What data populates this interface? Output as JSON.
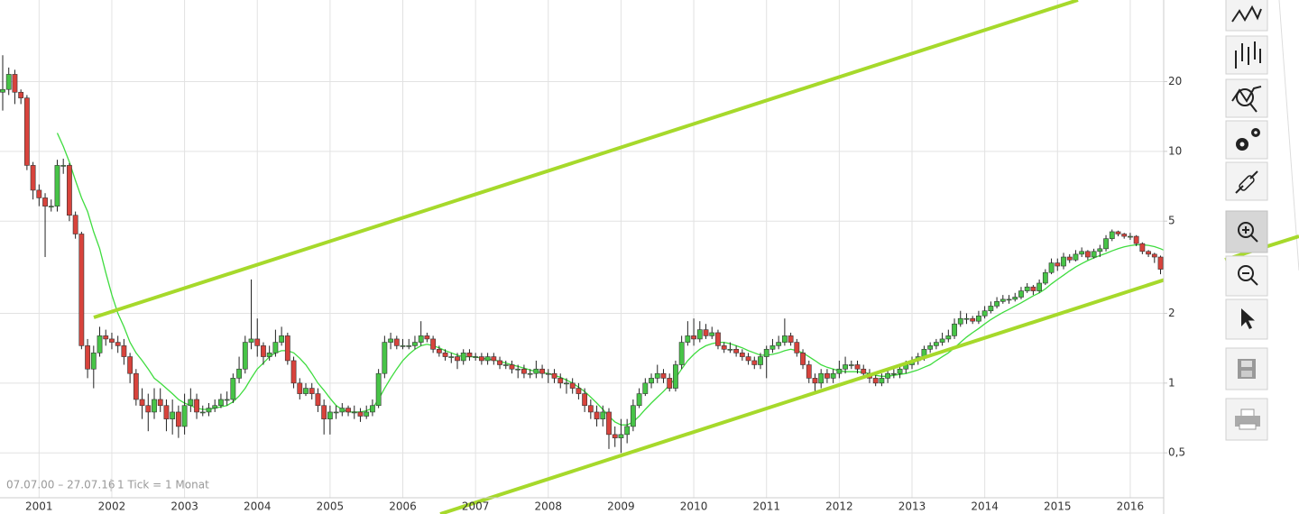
{
  "chart_data": {
    "type": "candlestick",
    "log_scale": true,
    "grid": true,
    "ylim": [
      0.32,
      45
    ],
    "yticks": [
      20,
      10,
      5,
      2,
      1,
      {
        "value": 0.5,
        "label": "0,5"
      }
    ],
    "annotations": [
      "07.07.00 – 27.07.16",
      "1 Tick = 1 Monat"
    ],
    "categories": [
      null,
      null,
      null,
      null,
      null,
      null,
      "2001",
      null,
      null,
      null,
      null,
      null,
      null,
      null,
      null,
      null,
      null,
      null,
      "2002",
      null,
      null,
      null,
      null,
      null,
      null,
      null,
      null,
      null,
      null,
      null,
      "2003",
      null,
      null,
      null,
      null,
      null,
      null,
      null,
      null,
      null,
      null,
      null,
      "2004",
      null,
      null,
      null,
      null,
      null,
      null,
      null,
      null,
      null,
      null,
      null,
      "2005",
      null,
      null,
      null,
      null,
      null,
      null,
      null,
      null,
      null,
      null,
      null,
      "2006",
      null,
      null,
      null,
      null,
      null,
      null,
      null,
      null,
      null,
      null,
      null,
      "2007",
      null,
      null,
      null,
      null,
      null,
      null,
      null,
      null,
      null,
      null,
      null,
      "2008",
      null,
      null,
      null,
      null,
      null,
      null,
      null,
      null,
      null,
      null,
      null,
      "2009",
      null,
      null,
      null,
      null,
      null,
      null,
      null,
      null,
      null,
      null,
      null,
      "2010",
      null,
      null,
      null,
      null,
      null,
      null,
      null,
      null,
      null,
      null,
      null,
      "2011",
      null,
      null,
      null,
      null,
      null,
      null,
      null,
      null,
      null,
      null,
      null,
      "2012",
      null,
      null,
      null,
      null,
      null,
      null,
      null,
      null,
      null,
      null,
      null,
      "2013",
      null,
      null,
      null,
      null,
      null,
      null,
      null,
      null,
      null,
      null,
      null,
      "2014",
      null,
      null,
      null,
      null,
      null,
      null,
      null,
      null,
      null,
      null,
      null,
      "2015",
      null,
      null,
      null,
      null,
      null,
      null,
      null,
      null,
      null,
      null,
      null,
      "2016",
      null,
      null,
      null,
      null,
      null,
      null
    ],
    "candles": {
      "up_color": "#47c447",
      "down_color": "#d8433c",
      "open": [
        18,
        18.5,
        21.5,
        18,
        17,
        8.7,
        6.8,
        6.3,
        5.8,
        5.8,
        8.7,
        8.7,
        5.3,
        4.4,
        1.45,
        1.15,
        1.35,
        1.6,
        1.55,
        1.5,
        1.45,
        1.3,
        1.1,
        0.85,
        0.8,
        0.75,
        0.85,
        0.8,
        0.7,
        0.75,
        0.65,
        0.8,
        0.85,
        0.75,
        0.75,
        0.78,
        0.8,
        0.85,
        0.85,
        1.05,
        1.15,
        1.5,
        1.55,
        1.45,
        1.3,
        1.35,
        1.5,
        1.6,
        1.25,
        1.0,
        0.9,
        0.95,
        0.9,
        0.8,
        0.7,
        0.75,
        0.75,
        0.78,
        0.75,
        0.75,
        0.72,
        0.75,
        0.8,
        1.1,
        1.5,
        1.55,
        1.45,
        1.45,
        1.45,
        1.5,
        1.6,
        1.55,
        1.4,
        1.35,
        1.3,
        1.3,
        1.25,
        1.35,
        1.3,
        1.3,
        1.25,
        1.3,
        1.25,
        1.2,
        1.2,
        1.15,
        1.15,
        1.1,
        1.1,
        1.15,
        1.1,
        1.1,
        1.05,
        1.0,
        1.0,
        0.95,
        0.9,
        0.8,
        0.75,
        0.7,
        0.75,
        0.6,
        0.58,
        0.6,
        0.65,
        0.8,
        0.9,
        1.0,
        1.05,
        1.1,
        1.05,
        0.95,
        1.2,
        1.5,
        1.6,
        1.55,
        1.7,
        1.6,
        1.65,
        1.45,
        1.4,
        1.4,
        1.35,
        1.3,
        1.25,
        1.2,
        1.3,
        1.4,
        1.45,
        1.5,
        1.6,
        1.5,
        1.35,
        1.2,
        1.05,
        1.0,
        1.1,
        1.05,
        1.1,
        1.15,
        1.2,
        1.2,
        1.15,
        1.1,
        1.05,
        1.0,
        1.05,
        1.1,
        1.1,
        1.15,
        1.2,
        1.25,
        1.3,
        1.4,
        1.45,
        1.5,
        1.55,
        1.6,
        1.8,
        1.9,
        1.9,
        1.85,
        1.95,
        2.05,
        2.15,
        2.25,
        2.3,
        2.3,
        2.35,
        2.5,
        2.6,
        2.5,
        2.7,
        3.0,
        3.3,
        3.2,
        3.5,
        3.4,
        3.6,
        3.7,
        3.5,
        3.7,
        3.8,
        4.2,
        4.5,
        4.4,
        4.3,
        4.3,
        4.0,
        3.7,
        3.6,
        3.5,
        3.1
      ],
      "high": [
        26,
        23,
        22.5,
        18.5,
        17.5,
        9,
        7.2,
        6.6,
        6.2,
        9.2,
        9.3,
        8.9,
        5.5,
        4.5,
        1.55,
        1.45,
        1.75,
        1.7,
        1.65,
        1.6,
        1.55,
        1.35,
        1.15,
        0.95,
        0.9,
        0.95,
        0.95,
        0.85,
        0.85,
        0.8,
        0.9,
        0.95,
        0.9,
        0.8,
        0.82,
        0.85,
        0.9,
        0.92,
        1.1,
        1.3,
        1.6,
        2.8,
        1.9,
        1.5,
        1.45,
        1.7,
        1.75,
        1.65,
        1.3,
        1.05,
        1.0,
        1.0,
        0.95,
        0.85,
        0.8,
        0.8,
        0.82,
        0.8,
        0.8,
        0.78,
        0.8,
        0.85,
        1.15,
        1.6,
        1.65,
        1.6,
        1.55,
        1.55,
        1.6,
        1.85,
        1.65,
        1.6,
        1.45,
        1.4,
        1.35,
        1.35,
        1.4,
        1.4,
        1.35,
        1.35,
        1.35,
        1.35,
        1.3,
        1.25,
        1.25,
        1.2,
        1.2,
        1.15,
        1.25,
        1.2,
        1.15,
        1.15,
        1.1,
        1.05,
        1.05,
        1.0,
        0.95,
        0.85,
        0.8,
        0.8,
        0.78,
        0.65,
        0.7,
        0.7,
        0.85,
        0.95,
        1.05,
        1.1,
        1.2,
        1.15,
        1.1,
        1.25,
        1.6,
        1.85,
        1.9,
        1.85,
        1.8,
        1.75,
        1.7,
        1.5,
        1.5,
        1.45,
        1.4,
        1.35,
        1.3,
        1.35,
        1.45,
        1.55,
        1.6,
        1.9,
        1.65,
        1.55,
        1.4,
        1.25,
        1.1,
        1.15,
        1.15,
        1.15,
        1.25,
        1.3,
        1.25,
        1.25,
        1.2,
        1.15,
        1.1,
        1.1,
        1.15,
        1.15,
        1.2,
        1.25,
        1.3,
        1.35,
        1.45,
        1.5,
        1.55,
        1.65,
        1.7,
        1.9,
        2.05,
        2.0,
        1.95,
        2.05,
        2.15,
        2.25,
        2.35,
        2.4,
        2.4,
        2.45,
        2.6,
        2.7,
        2.65,
        2.8,
        3.1,
        3.45,
        3.45,
        3.65,
        3.6,
        3.75,
        3.85,
        3.75,
        3.8,
        3.95,
        4.35,
        4.6,
        4.55,
        4.45,
        4.45,
        4.35,
        4.05,
        3.75,
        3.65,
        3.55,
        3.2
      ],
      "low": [
        15,
        17.5,
        16,
        16,
        8.3,
        6.2,
        5.8,
        3.5,
        5.5,
        5.5,
        8,
        5,
        4.2,
        1.4,
        1.05,
        0.95,
        1.3,
        1.45,
        1.4,
        1.35,
        1.2,
        1.0,
        0.8,
        0.7,
        0.62,
        0.7,
        0.75,
        0.62,
        0.6,
        0.58,
        0.6,
        0.75,
        0.7,
        0.72,
        0.72,
        0.75,
        0.78,
        0.8,
        0.82,
        1.0,
        1.1,
        1.4,
        1.3,
        1.2,
        1.25,
        1.3,
        1.45,
        1.2,
        0.95,
        0.85,
        0.88,
        0.85,
        0.75,
        0.6,
        0.6,
        0.7,
        0.72,
        0.72,
        0.7,
        0.68,
        0.7,
        0.72,
        0.78,
        1.05,
        1.4,
        1.4,
        1.4,
        1.4,
        1.4,
        1.45,
        1.5,
        1.35,
        1.3,
        1.25,
        1.22,
        1.15,
        1.2,
        1.25,
        1.25,
        1.2,
        1.2,
        1.2,
        1.15,
        1.15,
        1.1,
        1.05,
        1.05,
        1.05,
        1.05,
        1.05,
        1.0,
        1.0,
        0.95,
        0.9,
        0.9,
        0.85,
        0.75,
        0.7,
        0.65,
        0.65,
        0.52,
        0.53,
        0.5,
        0.55,
        0.62,
        0.78,
        0.88,
        0.95,
        1.0,
        1.0,
        0.92,
        0.92,
        1.15,
        1.45,
        1.45,
        1.5,
        1.55,
        1.55,
        1.4,
        1.35,
        1.35,
        1.3,
        1.25,
        1.2,
        1.15,
        1.15,
        1.05,
        1.35,
        1.4,
        1.45,
        1.45,
        1.3,
        1.15,
        1.0,
        0.9,
        0.95,
        1.0,
        1.0,
        1.05,
        1.1,
        1.15,
        1.1,
        1.05,
        1.0,
        0.97,
        0.97,
        1.0,
        1.05,
        1.05,
        1.1,
        1.15,
        1.2,
        1.25,
        1.35,
        1.4,
        1.45,
        1.5,
        1.55,
        1.75,
        1.8,
        1.8,
        1.8,
        1.9,
        2.0,
        2.1,
        2.2,
        2.2,
        2.25,
        2.3,
        2.45,
        2.4,
        2.45,
        2.65,
        2.95,
        3.05,
        3.1,
        3.3,
        3.35,
        3.5,
        3.4,
        3.45,
        3.5,
        3.7,
        4.1,
        4.3,
        4.2,
        4.15,
        3.9,
        3.6,
        3.5,
        3.3,
        2.95,
        2.85
      ],
      "close": [
        18.5,
        21.5,
        18,
        17,
        8.7,
        6.8,
        6.3,
        5.8,
        5.8,
        8.7,
        8.7,
        5.3,
        4.4,
        1.45,
        1.15,
        1.35,
        1.6,
        1.55,
        1.5,
        1.45,
        1.3,
        1.1,
        0.85,
        0.8,
        0.75,
        0.85,
        0.8,
        0.7,
        0.75,
        0.65,
        0.8,
        0.85,
        0.75,
        0.75,
        0.78,
        0.8,
        0.85,
        0.85,
        1.05,
        1.15,
        1.5,
        1.55,
        1.45,
        1.3,
        1.35,
        1.5,
        1.6,
        1.25,
        1.0,
        0.9,
        0.95,
        0.9,
        0.8,
        0.7,
        0.75,
        0.75,
        0.78,
        0.75,
        0.75,
        0.72,
        0.75,
        0.8,
        1.1,
        1.5,
        1.55,
        1.45,
        1.45,
        1.45,
        1.5,
        1.6,
        1.55,
        1.4,
        1.35,
        1.3,
        1.3,
        1.25,
        1.35,
        1.3,
        1.3,
        1.25,
        1.3,
        1.25,
        1.2,
        1.2,
        1.15,
        1.15,
        1.1,
        1.1,
        1.15,
        1.1,
        1.1,
        1.05,
        1.0,
        1.0,
        0.95,
        0.9,
        0.8,
        0.75,
        0.7,
        0.75,
        0.6,
        0.58,
        0.6,
        0.65,
        0.8,
        0.9,
        1.0,
        1.05,
        1.1,
        1.05,
        0.95,
        1.2,
        1.5,
        1.6,
        1.55,
        1.7,
        1.6,
        1.65,
        1.45,
        1.4,
        1.4,
        1.35,
        1.3,
        1.25,
        1.2,
        1.3,
        1.4,
        1.45,
        1.5,
        1.6,
        1.5,
        1.35,
        1.2,
        1.05,
        1.0,
        1.1,
        1.05,
        1.1,
        1.15,
        1.2,
        1.2,
        1.15,
        1.1,
        1.05,
        1.0,
        1.05,
        1.1,
        1.1,
        1.15,
        1.2,
        1.25,
        1.3,
        1.4,
        1.45,
        1.5,
        1.55,
        1.6,
        1.8,
        1.9,
        1.9,
        1.85,
        1.95,
        2.05,
        2.15,
        2.25,
        2.3,
        2.3,
        2.35,
        2.5,
        2.6,
        2.5,
        2.7,
        3.0,
        3.3,
        3.2,
        3.5,
        3.4,
        3.6,
        3.7,
        3.5,
        3.7,
        3.8,
        4.2,
        4.5,
        4.4,
        4.3,
        4.3,
        4.0,
        3.7,
        3.6,
        3.5,
        3.1,
        3.0
      ]
    },
    "moving_average": {
      "color": "#3fdc3f",
      "values": [
        null,
        null,
        null,
        null,
        null,
        null,
        null,
        null,
        null,
        12,
        10.5,
        9,
        7.5,
        6.3,
        5.5,
        4.5,
        3.8,
        3.0,
        2.4,
        2.0,
        1.75,
        1.5,
        1.35,
        1.25,
        1.15,
        1.05,
        1.0,
        0.95,
        0.9,
        0.85,
        0.82,
        0.8,
        0.78,
        0.77,
        0.77,
        0.78,
        0.79,
        0.8,
        0.83,
        0.88,
        0.95,
        1.05,
        1.15,
        1.22,
        1.3,
        1.35,
        1.38,
        1.38,
        1.35,
        1.28,
        1.2,
        1.1,
        1.0,
        0.93,
        0.86,
        0.8,
        0.77,
        0.75,
        0.75,
        0.75,
        0.76,
        0.78,
        0.85,
        0.95,
        1.05,
        1.15,
        1.25,
        1.33,
        1.4,
        1.45,
        1.47,
        1.45,
        1.42,
        1.38,
        1.35,
        1.32,
        1.3,
        1.3,
        1.3,
        1.28,
        1.27,
        1.26,
        1.24,
        1.22,
        1.2,
        1.18,
        1.16,
        1.14,
        1.12,
        1.11,
        1.1,
        1.08,
        1.06,
        1.03,
        1.0,
        0.96,
        0.92,
        0.87,
        0.82,
        0.77,
        0.72,
        0.68,
        0.66,
        0.66,
        0.68,
        0.72,
        0.77,
        0.82,
        0.87,
        0.92,
        0.98,
        1.05,
        1.15,
        1.25,
        1.33,
        1.4,
        1.45,
        1.48,
        1.5,
        1.5,
        1.48,
        1.45,
        1.42,
        1.38,
        1.35,
        1.32,
        1.32,
        1.33,
        1.35,
        1.38,
        1.4,
        1.38,
        1.35,
        1.3,
        1.25,
        1.2,
        1.17,
        1.15,
        1.13,
        1.12,
        1.12,
        1.12,
        1.11,
        1.1,
        1.08,
        1.07,
        1.07,
        1.08,
        1.09,
        1.1,
        1.12,
        1.14,
        1.17,
        1.2,
        1.25,
        1.3,
        1.35,
        1.42,
        1.5,
        1.58,
        1.65,
        1.72,
        1.8,
        1.88,
        1.95,
        2.02,
        2.08,
        2.15,
        2.22,
        2.3,
        2.38,
        2.45,
        2.55,
        2.68,
        2.8,
        2.92,
        3.05,
        3.17,
        3.28,
        3.38,
        3.47,
        3.55,
        3.63,
        3.72,
        3.8,
        3.87,
        3.92,
        3.95,
        3.95,
        3.93,
        3.88,
        3.8,
        3.7
      ]
    }
  }
}
